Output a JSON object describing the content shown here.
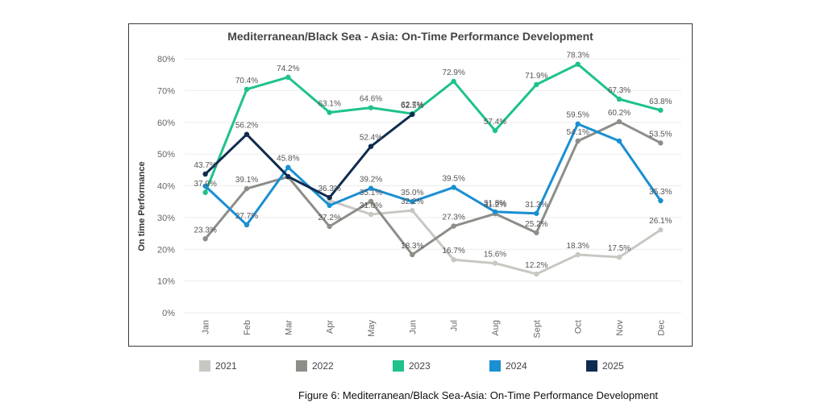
{
  "chart_data": {
    "type": "line",
    "title": "Mediterranean/Black Sea - Asia: On-Time Performance Development",
    "xlabel": "",
    "ylabel": "On time Performance",
    "ylim": [
      0,
      80
    ],
    "yticks": [
      "0%",
      "10%",
      "20%",
      "30%",
      "40%",
      "50%",
      "60%",
      "70%",
      "80%"
    ],
    "categories": [
      "Jan",
      "Feb",
      "Mar",
      "Apr",
      "May",
      "Jun",
      "Jul",
      "Aug",
      "Sept",
      "Oct",
      "Nov",
      "Dec"
    ],
    "series": [
      {
        "name": "2021",
        "color": "#c8c8c3",
        "values": [
          null,
          null,
          null,
          35.4,
          31.0,
          32.2,
          16.7,
          15.6,
          12.2,
          18.3,
          17.5,
          26.1
        ],
        "labels": [
          null,
          null,
          null,
          null,
          "31.0%",
          "32.2%",
          "16.7%",
          "15.6%",
          "12.2%",
          "18.3%",
          "17.5%",
          "26.1%"
        ]
      },
      {
        "name": "2022",
        "color": "#8e8e88",
        "values": [
          23.3,
          39.1,
          42.8,
          27.2,
          35.1,
          18.3,
          27.3,
          31.2,
          25.2,
          54.1,
          60.2,
          53.5
        ],
        "labels": [
          "23.3%",
          "39.1%",
          null,
          "27.2%",
          "35.1%",
          "18.3%",
          "27.3%",
          "31.2%",
          "25.2%",
          "54.1%",
          "60.2%",
          "53.5%"
        ]
      },
      {
        "name": "2023",
        "color": "#1ec28b",
        "values": [
          37.9,
          70.4,
          74.2,
          63.1,
          64.6,
          62.7,
          72.9,
          57.4,
          71.9,
          78.3,
          67.3,
          63.8
        ],
        "labels": [
          "37.9%",
          "70.4%",
          "74.2%",
          "63.1%",
          "64.6%",
          "62.7%",
          "72.9%",
          "57.4%",
          "71.9%",
          "78.3%",
          "67.3%",
          "63.8%"
        ]
      },
      {
        "name": "2024",
        "color": "#1a8fd2",
        "values": [
          39.9,
          27.7,
          45.8,
          33.8,
          39.2,
          35.0,
          39.5,
          31.8,
          31.3,
          59.5,
          54.1,
          35.3
        ],
        "labels": [
          null,
          "27.7%",
          "45.8%",
          null,
          "39.2%",
          "35.0%",
          "39.5%",
          "31.8%",
          "31.3%",
          "59.5%",
          null,
          "35.3%"
        ]
      },
      {
        "name": "2025",
        "color": "#0f2b4f",
        "values": [
          43.7,
          56.2,
          42.9,
          36.3,
          52.4,
          62.5,
          null,
          null,
          null,
          null,
          null,
          null
        ],
        "labels": [
          "43.7%",
          "56.2%",
          null,
          "36.3%",
          "52.4%",
          "62.5%",
          null,
          null,
          null,
          null,
          null,
          null
        ]
      }
    ]
  },
  "legend": [
    {
      "name": "2021",
      "color": "#c8c8c3"
    },
    {
      "name": "2022",
      "color": "#8e8e88"
    },
    {
      "name": "2023",
      "color": "#1ec28b"
    },
    {
      "name": "2024",
      "color": "#1a8fd2"
    },
    {
      "name": "2025",
      "color": "#0f2b4f"
    }
  ],
  "caption": "Figure 6: Mediterranean/Black Sea-Asia: On-Time Performance Development"
}
